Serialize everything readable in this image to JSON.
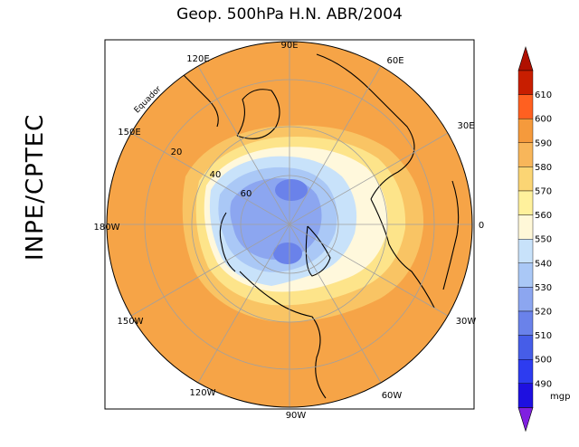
{
  "title": "Geop. 500hPa H.N. ABR/2004",
  "side_label": "INPE/CPTEC",
  "map": {
    "longitude_labels": {
      "top": "90E",
      "top_right": "60E",
      "right_upper": "30E",
      "right": "0",
      "right_lower": "30W",
      "bottom_right": "60W",
      "bottom": "90W",
      "bottom_left": "120W",
      "left_lower": "150W",
      "left": "180W",
      "left_upper": "150E",
      "top_left": "120E"
    },
    "latitude_labels": [
      "20",
      "40",
      "60"
    ],
    "equator_label": "Equador"
  },
  "colorbar": {
    "levels": [
      "610",
      "600",
      "590",
      "580",
      "570",
      "560",
      "550",
      "540",
      "530",
      "520",
      "510",
      "500",
      "490"
    ],
    "colors": [
      "#c81e00",
      "#ff6020",
      "#f59a3c",
      "#f8b65a",
      "#fbd574",
      "#fff19c",
      "#fff8d8",
      "#c8e2fa",
      "#aac8f6",
      "#8ca6f0",
      "#6a82ea",
      "#465de8",
      "#2d3cf0",
      "#1e10e0"
    ],
    "top_arrow_color": "#b01000",
    "bottom_arrow_color": "#8020e0",
    "unit": "mgp"
  }
}
